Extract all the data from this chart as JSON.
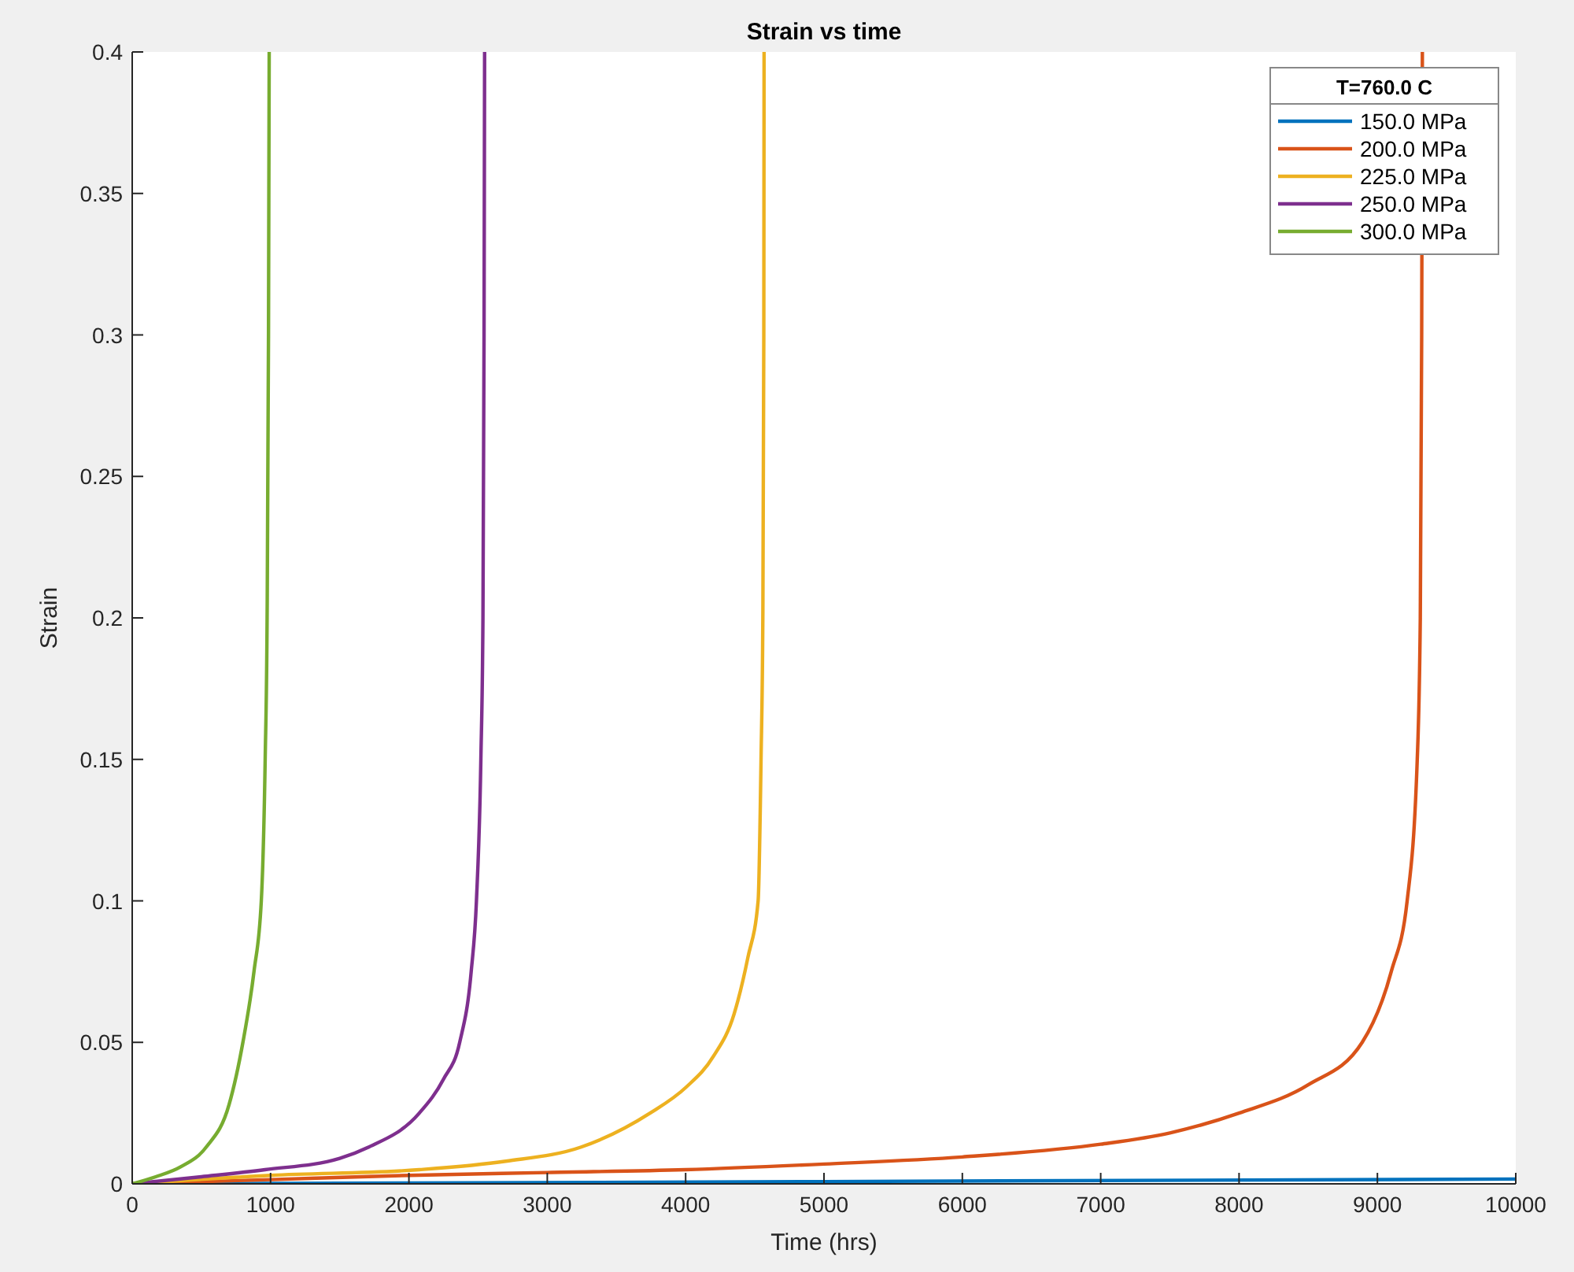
{
  "chart_data": {
    "type": "line",
    "title": "Strain vs time",
    "xlabel": "Time (hrs)",
    "ylabel": "Strain",
    "legend_title": "T=760.0 C",
    "legend": "top right",
    "grid": false,
    "line_style": "solid",
    "marker": "none",
    "xlim": [
      0,
      10000
    ],
    "xticks": [
      0,
      1000,
      2000,
      3000,
      4000,
      5000,
      6000,
      7000,
      8000,
      9000,
      10000
    ],
    "ylim": [
      0,
      0.4
    ],
    "yticks": [
      0,
      0.05,
      0.1,
      0.15,
      0.2,
      0.25,
      0.3,
      0.35,
      0.4
    ],
    "series": [
      {
        "name": "150.0 MPa",
        "color": "#0072bd",
        "x": [
          0,
          2000,
          5000,
          10000
        ],
        "values": [
          0,
          0.0003,
          0.0008,
          0.0017
        ]
      },
      {
        "name": "200.0 MPa",
        "color": "#d95319",
        "x": [
          0,
          1000,
          2000,
          3000,
          4000,
          5000,
          6000,
          7000,
          7500,
          8000,
          8500,
          8890,
          9100,
          9215,
          9288,
          9310,
          9320,
          9325
        ],
        "values": [
          0,
          0.0015,
          0.003,
          0.004,
          0.005,
          0.007,
          0.0095,
          0.014,
          0.018,
          0.025,
          0.035,
          0.05,
          0.075,
          0.1,
          0.15,
          0.2,
          0.3,
          0.4
        ]
      },
      {
        "name": "225.0 MPa",
        "color": "#edb120",
        "x": [
          0,
          1000,
          2075,
          2700,
          3245,
          3743,
          4000,
          4200,
          4350,
          4450,
          4524,
          4545,
          4558,
          4565,
          4567
        ],
        "values": [
          0,
          0.003,
          0.005,
          0.008,
          0.013,
          0.025,
          0.034,
          0.045,
          0.06,
          0.08,
          0.1,
          0.15,
          0.2,
          0.3,
          0.4
        ]
      },
      {
        "name": "250.0 MPa",
        "color": "#7e2f8e",
        "x": [
          0,
          500,
          960,
          1500,
          1700,
          2075,
          2250,
          2367,
          2450,
          2488,
          2520,
          2535,
          2543,
          2547
        ],
        "values": [
          0,
          0.0025,
          0.005,
          0.009,
          0.0128,
          0.025,
          0.037,
          0.05,
          0.075,
          0.1,
          0.15,
          0.2,
          0.3,
          0.4
        ]
      },
      {
        "name": "300.0 MPa",
        "color": "#77ac30",
        "x": [
          0,
          170,
          350,
          535,
          700,
          800,
          880,
          933,
          961,
          975,
          985,
          990
        ],
        "values": [
          0,
          0.0025,
          0.006,
          0.013,
          0.028,
          0.05,
          0.075,
          0.1,
          0.15,
          0.2,
          0.3,
          0.4
        ]
      }
    ]
  }
}
